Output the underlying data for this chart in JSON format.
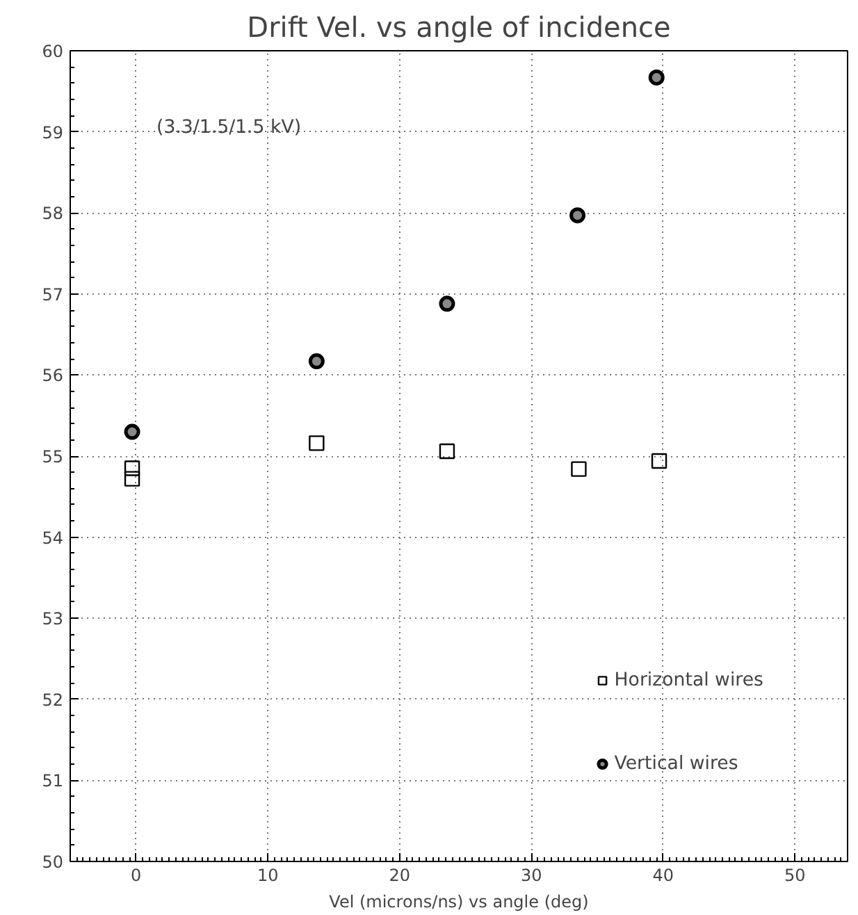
{
  "chart_data": {
    "type": "scatter",
    "title": "Drift Vel. vs angle of incidence",
    "xlabel": "Vel (microns/ns) vs angle (deg)",
    "xlim": [
      -5,
      54
    ],
    "xticks": [
      0,
      10,
      20,
      30,
      40,
      50
    ],
    "ylim": [
      50,
      60
    ],
    "yticks": [
      50,
      51,
      52,
      53,
      54,
      55,
      56,
      57,
      58,
      59,
      60
    ],
    "grid": true,
    "legend": "bottom right",
    "annotations": [
      "(3.3/1.5/1.5 kV)"
    ],
    "series": [
      {
        "name": "Horizontal wires",
        "color": "#000000",
        "marker": "square",
        "x": [
          -0.3,
          -0.3,
          13.7,
          23.6,
          33.6,
          39.7
        ],
        "values": [
          54.85,
          54.72,
          55.16,
          55.06,
          54.84,
          54.94
        ]
      },
      {
        "name": "Vertical wires",
        "color": "#000000",
        "marker": "circle",
        "x": [
          -0.3,
          13.7,
          23.6,
          33.5,
          39.5
        ],
        "values": [
          55.3,
          56.17,
          56.88,
          57.97,
          59.67
        ]
      }
    ]
  }
}
